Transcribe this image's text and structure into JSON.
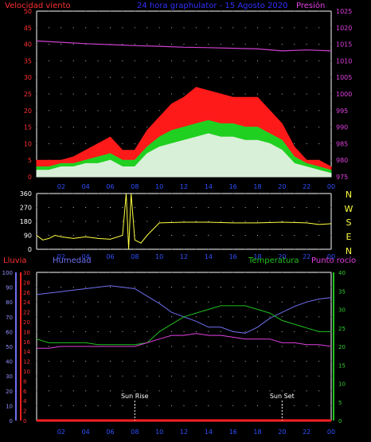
{
  "panel_wind": {
    "title_left": "Velocidad viento",
    "title_center": "24 hora graphulator - 15 Agosto 2020",
    "title_right": "Presión",
    "left_ticks": [
      "0",
      "5",
      "10",
      "15",
      "20",
      "25",
      "30",
      "35",
      "40",
      "45",
      "50"
    ],
    "right_ticks": [
      "975",
      "980",
      "985",
      "990",
      "995",
      "1000",
      "1005",
      "1010",
      "1015",
      "1020",
      "1025"
    ],
    "x_ticks": [
      "02",
      "04",
      "06",
      "08",
      "10",
      "12",
      "14",
      "16",
      "18",
      "20",
      "22",
      "00"
    ]
  },
  "panel_dir": {
    "left_ticks": [
      "0",
      "90",
      "180",
      "270",
      "360"
    ],
    "compass": [
      "N",
      "W",
      "S",
      "E",
      "N"
    ],
    "x_ticks": [
      "02",
      "04",
      "06",
      "08",
      "10",
      "12",
      "14",
      "16",
      "18",
      "20",
      "22",
      "00"
    ]
  },
  "panel_temp": {
    "label_rain": "Lluvia",
    "label_hum": "Humedad",
    "label_temp": "Temperatura",
    "label_dew": "Punto rocío",
    "hum_ticks": [
      "0",
      "10",
      "20",
      "30",
      "40",
      "50",
      "60",
      "70",
      "80",
      "90",
      "100"
    ],
    "rain_ticks": [
      "0",
      "2",
      "4",
      "6",
      "8",
      "10",
      "12",
      "14",
      "16",
      "18",
      "20",
      "22",
      "24",
      "26",
      "28",
      "30"
    ],
    "temp_ticks": [
      "0",
      "5",
      "10",
      "15",
      "20",
      "25",
      "30",
      "35",
      "40"
    ],
    "x_ticks": [
      "02",
      "04",
      "06",
      "08",
      "10",
      "12",
      "14",
      "16",
      "18",
      "20",
      "22",
      "00"
    ],
    "sunrise_label": "Sun Rise",
    "sunset_label": "Sun Set"
  },
  "colors": {
    "gust": "#ff1a1a",
    "avg": "#20d020",
    "speed": "#d8f0d8",
    "pressure": "#d040d0",
    "direction": "#ffff40",
    "humidity": "#7070f0",
    "temperature": "#20c020",
    "dewpoint": "#e040e0",
    "rain": "#ff2020",
    "left_axis": "#ff3030",
    "right_axis": "#e040e0"
  },
  "chart_data": [
    {
      "type": "line",
      "x_unit": "hour",
      "series": [
        {
          "key": "gust",
          "x": [
            0,
            1,
            2,
            3,
            4,
            5,
            6,
            7,
            8,
            9,
            10,
            11,
            12,
            13,
            14,
            15,
            16,
            17,
            18,
            19,
            20,
            21,
            22,
            23,
            24
          ],
          "values": [
            5,
            5,
            5,
            6,
            8,
            10,
            12,
            8,
            8,
            14,
            18,
            22,
            24,
            27,
            26,
            25,
            24,
            24,
            24,
            20,
            16,
            9,
            5,
            5,
            3
          ]
        },
        {
          "key": "avg",
          "x": [
            0,
            1,
            2,
            3,
            4,
            5,
            6,
            7,
            8,
            9,
            10,
            11,
            12,
            13,
            14,
            15,
            16,
            17,
            18,
            19,
            20,
            21,
            22,
            23,
            24
          ],
          "values": [
            3,
            3,
            4,
            4,
            5,
            6,
            7,
            5,
            5,
            9,
            12,
            14,
            15,
            16,
            17,
            16,
            16,
            15,
            15,
            13,
            11,
            6,
            4,
            3,
            2
          ]
        },
        {
          "key": "speed",
          "x": [
            0,
            1,
            2,
            3,
            4,
            5,
            6,
            7,
            8,
            9,
            10,
            11,
            12,
            13,
            14,
            15,
            16,
            17,
            18,
            19,
            20,
            21,
            22,
            23,
            24
          ],
          "values": [
            2,
            2,
            3,
            3,
            4,
            4,
            5,
            3,
            3,
            7,
            9,
            10,
            11,
            12,
            13,
            12,
            12,
            11,
            11,
            10,
            8,
            4,
            3,
            2,
            1
          ]
        },
        {
          "key": "pressure",
          "x": [
            0,
            2,
            4,
            6,
            8,
            10,
            12,
            14,
            16,
            18,
            20,
            22,
            24
          ],
          "values": [
            1016,
            1015.6,
            1015.2,
            1014.9,
            1014.6,
            1014.4,
            1014.1,
            1014,
            1013.8,
            1013.6,
            1013,
            1013.3,
            1013
          ]
        }
      ],
      "ylim_left": [
        0,
        50
      ],
      "ylim_right": [
        975,
        1025
      ]
    },
    {
      "type": "line",
      "x_unit": "hour",
      "series": [
        {
          "key": "direction",
          "x": [
            0,
            0.5,
            1,
            1.5,
            2,
            3,
            4,
            5,
            6,
            7,
            7.3,
            7.5,
            7.7,
            8,
            8.5,
            9,
            10,
            12,
            14,
            16,
            18,
            20,
            22,
            23,
            24
          ],
          "values": [
            90,
            60,
            70,
            90,
            80,
            70,
            80,
            70,
            65,
            90,
            360,
            0,
            360,
            60,
            40,
            90,
            170,
            175,
            175,
            170,
            170,
            175,
            170,
            160,
            165
          ]
        }
      ],
      "ylim": [
        0,
        360
      ]
    },
    {
      "type": "line",
      "x_unit": "hour",
      "series": [
        {
          "key": "humidity",
          "x": [
            0,
            1,
            2,
            3,
            4,
            5,
            6,
            7,
            8,
            9,
            10,
            11,
            12,
            13,
            14,
            15,
            16,
            17,
            18,
            19,
            20,
            21,
            22,
            23,
            24
          ],
          "values": [
            85,
            86,
            87,
            88,
            89,
            90,
            91,
            90,
            89,
            84,
            79,
            73,
            70,
            67,
            63,
            63,
            60,
            59,
            63,
            69,
            73,
            77,
            80,
            82,
            83
          ]
        },
        {
          "key": "temperature",
          "x": [
            0,
            1,
            2,
            3,
            4,
            5,
            6,
            7,
            8,
            9,
            10,
            11,
            12,
            13,
            14,
            15,
            16,
            17,
            18,
            19,
            20,
            21,
            22,
            23,
            24
          ],
          "values": [
            22,
            21,
            21,
            21,
            21,
            20.5,
            20.5,
            20.5,
            20.5,
            21,
            24,
            26,
            28,
            29,
            30,
            31,
            31,
            31,
            30,
            29,
            27,
            26,
            25,
            24,
            24
          ]
        },
        {
          "key": "dewpoint",
          "x": [
            0,
            1,
            2,
            3,
            4,
            5,
            6,
            7,
            8,
            9,
            10,
            11,
            12,
            13,
            14,
            15,
            16,
            17,
            18,
            19,
            20,
            21,
            22,
            23,
            24
          ],
          "values": [
            19.5,
            19.5,
            20,
            20,
            20,
            20,
            20,
            20,
            20,
            21,
            22,
            23,
            23,
            23.5,
            23,
            23,
            22.5,
            22,
            22,
            22,
            21,
            21,
            20.5,
            20.5,
            20
          ]
        },
        {
          "key": "rain",
          "x": [
            0,
            24
          ],
          "values": [
            0,
            0
          ]
        }
      ],
      "ylim_humidity": [
        0,
        100
      ],
      "ylim_rain": [
        0,
        30
      ],
      "ylim_temp": [
        0,
        40
      ],
      "sunrise_hour": 8,
      "sunset_hour": 20
    }
  ]
}
